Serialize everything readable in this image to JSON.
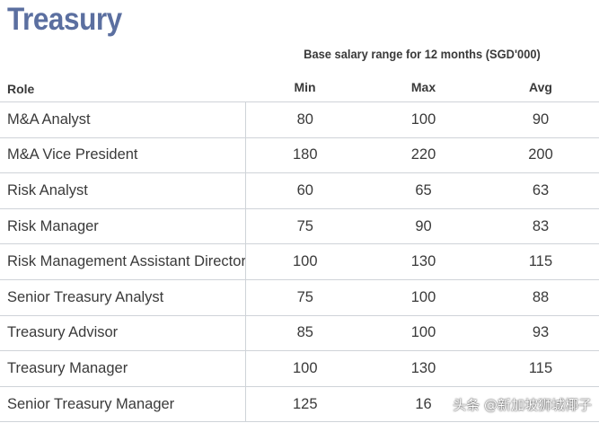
{
  "title": "Treasury",
  "caption": "Base salary range for 12 months (SGD'000)",
  "columns": {
    "role": "Role",
    "min": "Min",
    "max": "Max",
    "avg": "Avg"
  },
  "rows": [
    {
      "role": "M&A Analyst",
      "min": "80",
      "max": "100",
      "avg": "90"
    },
    {
      "role": "M&A Vice President",
      "min": "180",
      "max": "220",
      "avg": "200"
    },
    {
      "role": "Risk Analyst",
      "min": "60",
      "max": "65",
      "avg": "63"
    },
    {
      "role": "Risk Manager",
      "min": "75",
      "max": "90",
      "avg": "83"
    },
    {
      "role": "Risk Management Assistant Director",
      "min": "100",
      "max": "130",
      "avg": "115"
    },
    {
      "role": "Senior Treasury Analyst",
      "min": "75",
      "max": "100",
      "avg": "88"
    },
    {
      "role": "Treasury Advisor",
      "min": "85",
      "max": "100",
      "avg": "93"
    },
    {
      "role": "Treasury Manager",
      "min": "100",
      "max": "130",
      "avg": "115"
    },
    {
      "role": "Senior Treasury Manager",
      "min": "125",
      "max": "16",
      "avg": ""
    }
  ],
  "watermark": "头条 @新加坡狮城椰子"
}
